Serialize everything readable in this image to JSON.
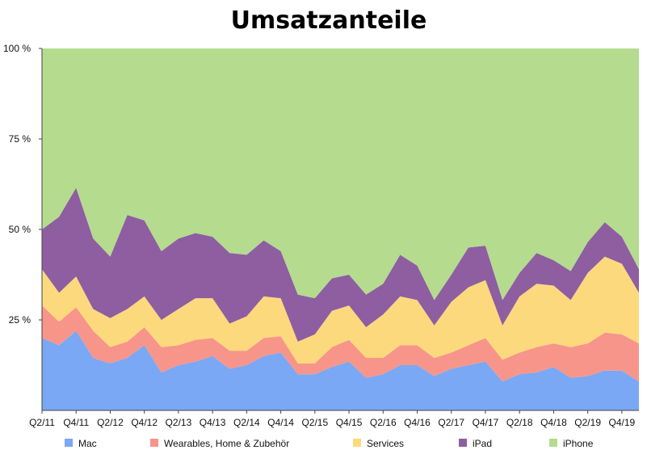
{
  "chart_data": {
    "type": "area",
    "stacked": true,
    "percent": true,
    "title": "Umsatzanteile",
    "xlabel": "",
    "ylabel": "",
    "ylim": [
      0,
      100
    ],
    "y_ticks": [
      "100 %",
      "75 %",
      "50 %",
      "25 %"
    ],
    "y_tick_values": [
      100,
      75,
      50,
      25
    ],
    "x": [
      "Q2/11",
      "Q3/11",
      "Q4/11",
      "Q1/12",
      "Q2/12",
      "Q3/12",
      "Q4/12",
      "Q1/13",
      "Q2/13",
      "Q3/13",
      "Q4/13",
      "Q1/14",
      "Q2/14",
      "Q3/14",
      "Q4/14",
      "Q1/15",
      "Q2/15",
      "Q3/15",
      "Q4/15",
      "Q1/16",
      "Q2/16",
      "Q3/16",
      "Q4/16",
      "Q1/17",
      "Q2/17",
      "Q3/17",
      "Q4/17",
      "Q1/18",
      "Q2/18",
      "Q3/18",
      "Q4/18",
      "Q1/19",
      "Q2/19",
      "Q3/19",
      "Q4/19",
      "Q1/20"
    ],
    "x_tick_labels": [
      "Q2/11",
      "Q4/11",
      "Q2/12",
      "Q4/12",
      "Q2/13",
      "Q4/13",
      "Q2/14",
      "Q4/14",
      "Q2/15",
      "Q4/15",
      "Q2/16",
      "Q4/16",
      "Q2/17",
      "Q4/17",
      "Q2/18",
      "Q4/18",
      "Q2/19",
      "Q4/19"
    ],
    "grid": false,
    "legend_position": "bottom",
    "series": [
      {
        "name": "Mac",
        "color": "#7aa8f4",
        "values": [
          20,
          18,
          22,
          14.5,
          13,
          14.5,
          18,
          10.5,
          12.5,
          13.5,
          15,
          11.5,
          12.5,
          15,
          16,
          10,
          10,
          12,
          13.5,
          9,
          10,
          12.5,
          12.5,
          9.5,
          11.5,
          12.5,
          13.5,
          8,
          10,
          10.5,
          12,
          9,
          9.5,
          11,
          11,
          8
        ]
      },
      {
        "name": "Wearables, Home & Zubehör",
        "color": "#f7958a",
        "values": [
          9,
          6.5,
          6.5,
          7.5,
          4.5,
          4.5,
          5,
          7,
          5.5,
          6,
          5,
          5,
          4,
          5,
          4.5,
          3,
          3,
          5.5,
          6,
          5.5,
          4.5,
          5.5,
          5.5,
          5,
          4.5,
          5.5,
          6.5,
          6,
          6,
          7,
          6.5,
          8.5,
          9,
          10.5,
          10,
          10.5
        ]
      },
      {
        "name": "Services",
        "color": "#fcd97c",
        "values": [
          10,
          8,
          8.5,
          6,
          8,
          9,
          8.5,
          7.5,
          10,
          11.5,
          11,
          7.5,
          9.5,
          11.5,
          10.5,
          6,
          8,
          10,
          9.5,
          8.5,
          12,
          13.5,
          12.5,
          9,
          14,
          16,
          16,
          9.5,
          15.5,
          17.5,
          16,
          13,
          19.5,
          21,
          19.5,
          14
        ]
      },
      {
        "name": "iPad",
        "color": "#8e5ea1",
        "values": [
          11,
          21,
          24.5,
          19.5,
          17,
          26,
          21,
          19,
          19.5,
          18,
          17,
          19.5,
          17,
          15.5,
          13,
          13,
          10,
          9,
          8.5,
          9,
          8.5,
          11.5,
          9.5,
          7,
          7.5,
          11,
          9.5,
          7,
          6.5,
          8.5,
          7,
          8,
          8.5,
          9.5,
          7.5,
          6.5
        ]
      },
      {
        "name": "iPhone",
        "color": "#b4db8e",
        "values": [
          50,
          46.5,
          38.5,
          52.5,
          57.5,
          46,
          47.5,
          56,
          52.5,
          51,
          52,
          56.5,
          57,
          53,
          56,
          68,
          69,
          63.5,
          62.5,
          68,
          65,
          57,
          60,
          69.5,
          62.5,
          55,
          54.5,
          69.5,
          62,
          56.5,
          58.5,
          61.5,
          53.5,
          48,
          52,
          61
        ]
      }
    ]
  }
}
